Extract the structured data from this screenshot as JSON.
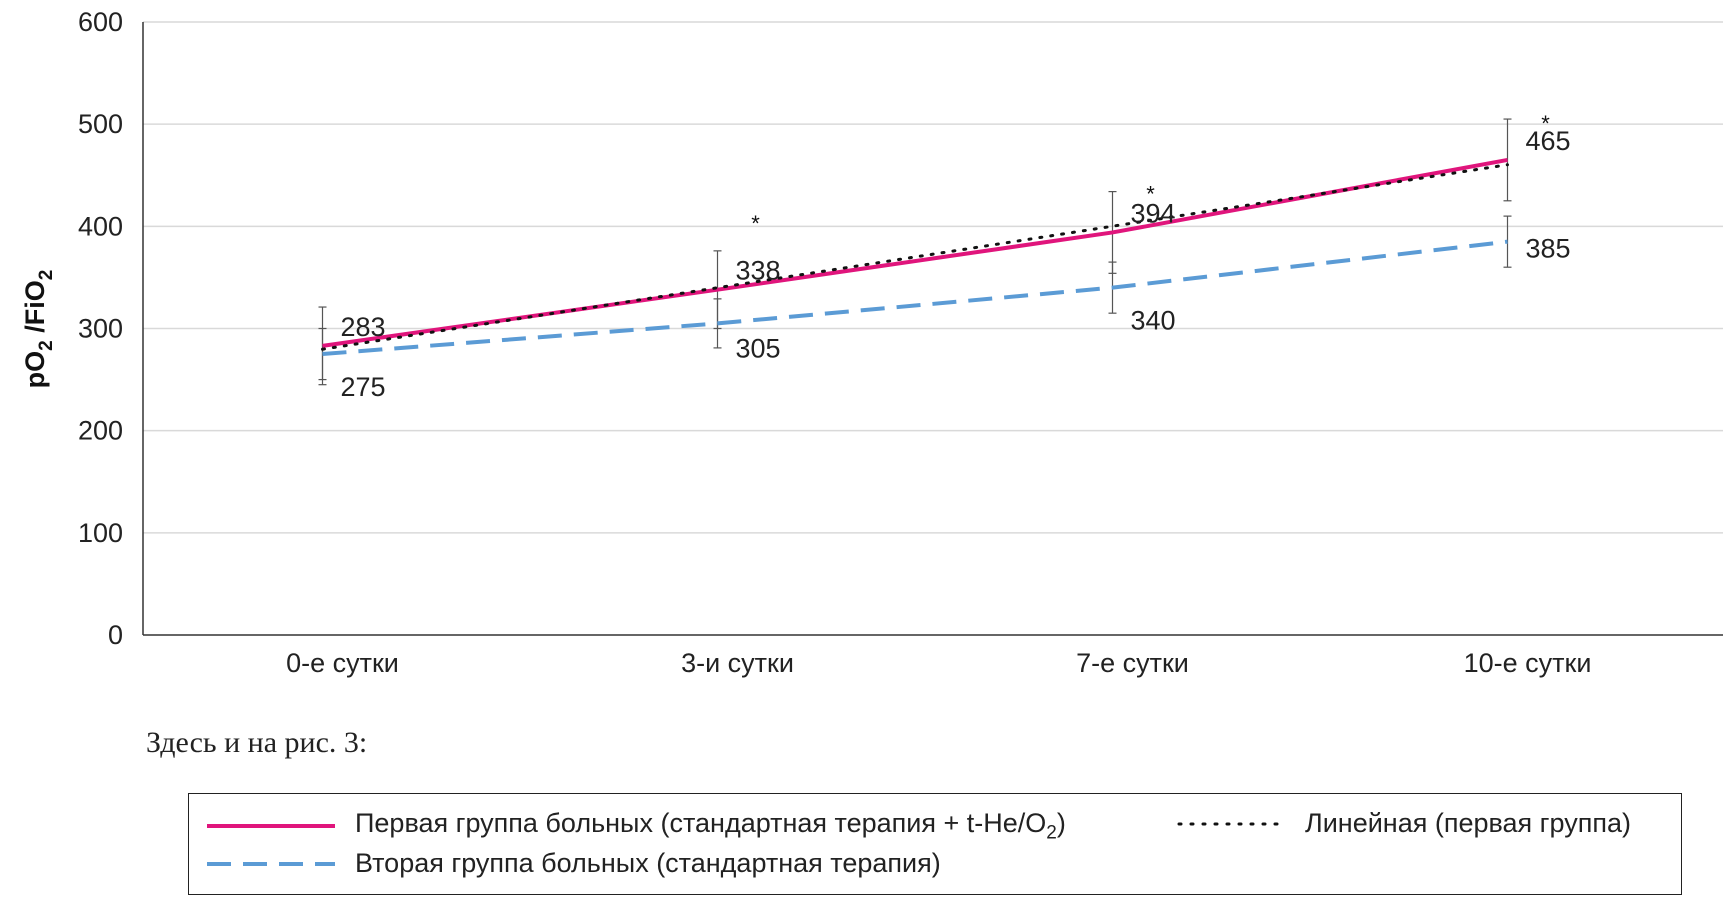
{
  "chart_data": {
    "type": "line",
    "categories": [
      "0-е сутки",
      "3-и сутки",
      "7-е сутки",
      "10-е сутки"
    ],
    "ylabel": "pO2 /FiO2",
    "ylim": [
      0,
      600
    ],
    "yticks": [
      0,
      100,
      200,
      300,
      400,
      500,
      600
    ],
    "grid": true,
    "series": [
      {
        "name": "Первая группа больных (стандартная терапия + t-He/O2)",
        "values": [
          283,
          338,
          394,
          465
        ],
        "error": [
          38,
          38,
          40,
          40
        ],
        "color": "#e0157c",
        "style": "solid"
      },
      {
        "name": "Вторая группа больных (стандартная терапия)",
        "values": [
          275,
          305,
          340,
          385
        ],
        "error": [
          25,
          24,
          25,
          25
        ],
        "color": "#5b9bd5",
        "style": "dashed"
      },
      {
        "name": "Линейная (первая группа)",
        "trend_of": 0,
        "color": "#111111",
        "style": "dotted"
      }
    ],
    "annotations": [
      {
        "category": "3-и сутки",
        "text": "*"
      },
      {
        "category": "7-е сутки",
        "text": "*"
      },
      {
        "category": "10-е сутки",
        "text": "*"
      }
    ]
  },
  "note": "Здесь и на рис. 3:",
  "legend": {
    "group1_label": "Первая группа больных (стандартная терапия + t-He/O",
    "group1_sub": "2",
    "group1_tail": ")",
    "trend_label": "Линейная (первая группа)",
    "group2_label": "Вторая группа больных (стандартная терапия)"
  }
}
